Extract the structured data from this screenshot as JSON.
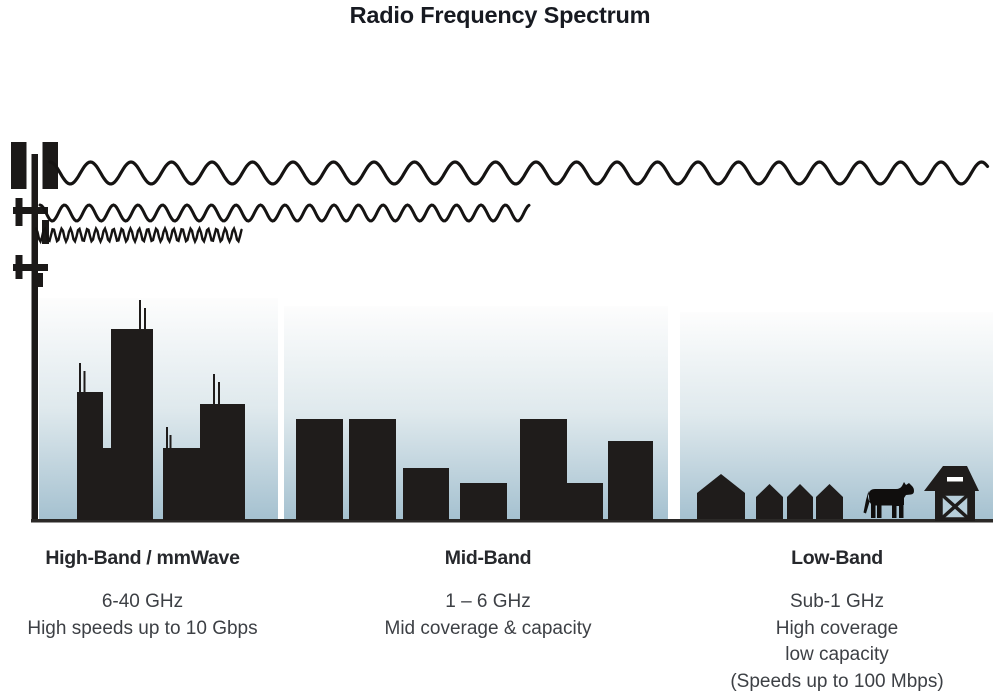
{
  "title": "Radio Frequency Spectrum",
  "bands": [
    {
      "heading": "High-Band / mmWave",
      "lines": [
        "6-40 GHz",
        "High speeds up to 10 Gbps"
      ]
    },
    {
      "heading": "Mid-Band",
      "lines": [
        "1 – 6 GHz",
        "Mid coverage & capacity"
      ]
    },
    {
      "heading": "Low-Band",
      "lines": [
        "Sub-1 GHz",
        "High coverage",
        "low capacity",
        "(Speeds up to 100 Mbps)"
      ]
    }
  ],
  "icons": [
    "cell-tower-icon",
    "short-wavelength-wave-icon",
    "medium-wavelength-wave-icon",
    "long-wavelength-wave-icon",
    "city-skyline-icon",
    "town-skyline-icon",
    "house-icon",
    "cow-icon",
    "barn-icon"
  ],
  "colors": {
    "ink": "#1f1c1b",
    "wave_stroke": "#151312",
    "sky_top": "#fdfdfd",
    "sky_mid": "#dfe9ed",
    "sky_bottom": "#a5c1d0",
    "ground": "#2b2927",
    "title_text": "#171a21",
    "heading_text": "#26282c",
    "body_text": "#3d4045"
  }
}
